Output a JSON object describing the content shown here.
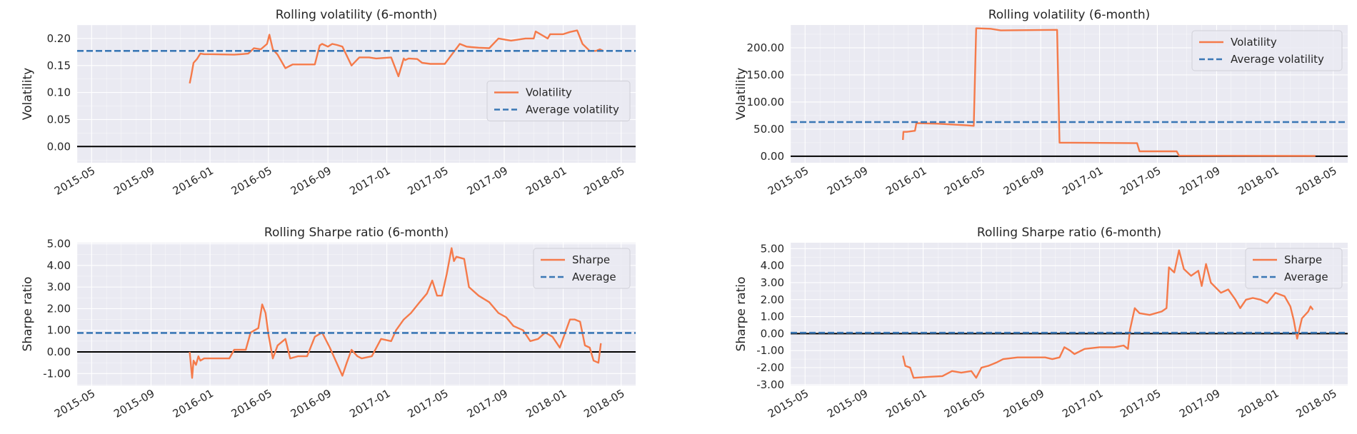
{
  "chart_data": [
    {
      "type": "line",
      "title": "Rolling volatility (6-month)",
      "xlabel": "",
      "ylabel": "Volatility",
      "x_ticks": [
        "2015-05",
        "2015-09",
        "2016-01",
        "2016-05",
        "2016-09",
        "2017-01",
        "2017-05",
        "2017-09",
        "2018-01",
        "2018-05"
      ],
      "xlim": [
        "2015-04-01",
        "2018-05-31"
      ],
      "ylim": [
        -0.03,
        0.225
      ],
      "y_ticks": [
        0.0,
        0.05,
        0.1,
        0.15,
        0.2
      ],
      "y_tick_labels": [
        "0.00",
        "0.05",
        "0.10",
        "0.15",
        "0.20"
      ],
      "grid": true,
      "legend": "center-right",
      "zero_line": 0,
      "series": [
        {
          "name": "Volatility",
          "color": "#f57a4a",
          "style": "solid",
          "x": [
            "2015-11-20",
            "2015-11-23",
            "2015-11-28",
            "2015-12-05",
            "2015-12-12",
            "2015-12-20",
            "2016-01-05",
            "2016-02-20",
            "2016-03-05",
            "2016-03-20",
            "2016-04-01",
            "2016-04-15",
            "2016-04-28",
            "2016-05-03",
            "2016-05-10",
            "2016-05-20",
            "2016-06-05",
            "2016-06-20",
            "2016-07-05",
            "2016-07-25",
            "2016-08-05",
            "2016-08-15",
            "2016-08-20",
            "2016-09-01",
            "2016-09-10",
            "2016-09-20",
            "2016-10-01",
            "2016-10-20",
            "2016-11-05",
            "2016-11-25",
            "2016-12-10",
            "2017-01-10",
            "2017-01-25",
            "2017-02-05",
            "2017-02-08",
            "2017-02-15",
            "2017-03-05",
            "2017-03-15",
            "2017-04-01",
            "2017-05-01",
            "2017-06-01",
            "2017-06-15",
            "2017-06-25",
            "2017-07-10",
            "2017-08-01",
            "2017-08-20",
            "2017-09-15",
            "2017-10-15",
            "2017-11-01",
            "2017-11-05",
            "2017-11-30",
            "2017-12-05",
            "2018-01-01",
            "2018-01-15",
            "2018-01-30",
            "2018-02-10",
            "2018-02-25",
            "2018-03-10",
            "2018-03-18",
            "2018-03-25"
          ],
          "y": [
            0.117,
            0.13,
            0.155,
            0.162,
            0.172,
            0.171,
            0.171,
            0.17,
            0.171,
            0.172,
            0.182,
            0.18,
            0.19,
            0.207,
            0.18,
            0.17,
            0.145,
            0.152,
            0.152,
            0.152,
            0.152,
            0.187,
            0.19,
            0.185,
            0.19,
            0.188,
            0.185,
            0.15,
            0.165,
            0.165,
            0.163,
            0.165,
            0.13,
            0.163,
            0.16,
            0.163,
            0.162,
            0.155,
            0.153,
            0.153,
            0.19,
            0.185,
            0.184,
            0.183,
            0.182,
            0.2,
            0.196,
            0.2,
            0.2,
            0.213,
            0.2,
            0.208,
            0.208,
            0.212,
            0.215,
            0.19,
            0.177,
            0.177,
            0.18,
            0.177
          ]
        },
        {
          "name": "Average volatility",
          "color": "#3a77b5",
          "style": "dashed",
          "x": [
            "2015-04-01",
            "2018-05-31"
          ],
          "y": [
            0.177,
            0.177
          ]
        }
      ]
    },
    {
      "type": "line",
      "title": "Rolling Sharpe ratio (6-month)",
      "xlabel": "",
      "ylabel": "Sharpe ratio",
      "x_ticks": [
        "2015-05",
        "2015-09",
        "2016-01",
        "2016-05",
        "2016-09",
        "2017-01",
        "2017-05",
        "2017-09",
        "2018-01",
        "2018-05"
      ],
      "xlim": [
        "2015-04-01",
        "2018-05-31"
      ],
      "ylim": [
        -1.55,
        5.05
      ],
      "y_ticks": [
        -1.0,
        0.0,
        1.0,
        2.0,
        3.0,
        4.0,
        5.0
      ],
      "y_tick_labels": [
        "-1.00",
        "0.00",
        "1.00",
        "2.00",
        "3.00",
        "4.00",
        "5.00"
      ],
      "grid": true,
      "legend": "top-right",
      "zero_line": 0,
      "series": [
        {
          "name": "Sharpe",
          "color": "#f57a4a",
          "style": "solid",
          "x": [
            "2015-11-20",
            "2015-11-25",
            "2015-11-28",
            "2015-12-03",
            "2015-12-08",
            "2015-12-12",
            "2015-12-20",
            "2016-02-10",
            "2016-02-20",
            "2016-03-15",
            "2016-03-25",
            "2016-04-10",
            "2016-04-18",
            "2016-04-25",
            "2016-05-01",
            "2016-05-10",
            "2016-05-20",
            "2016-06-05",
            "2016-06-15",
            "2016-07-01",
            "2016-07-20",
            "2016-08-05",
            "2016-08-20",
            "2016-09-05",
            "2016-09-15",
            "2016-10-01",
            "2016-10-10",
            "2016-10-20",
            "2016-11-01",
            "2016-11-10",
            "2016-12-01",
            "2016-12-20",
            "2017-01-10",
            "2017-01-20",
            "2017-02-05",
            "2017-02-20",
            "2017-03-10",
            "2017-03-25",
            "2017-04-05",
            "2017-04-15",
            "2017-04-25",
            "2017-05-05",
            "2017-05-15",
            "2017-05-20",
            "2017-05-25",
            "2017-06-10",
            "2017-06-20",
            "2017-07-10",
            "2017-08-01",
            "2017-08-20",
            "2017-09-05",
            "2017-09-20",
            "2017-10-10",
            "2017-10-25",
            "2017-11-10",
            "2017-11-25",
            "2017-12-10",
            "2017-12-25",
            "2018-01-15",
            "2018-01-25",
            "2018-02-05",
            "2018-02-15",
            "2018-02-25",
            "2018-03-05",
            "2018-03-15",
            "2018-03-20"
          ],
          "y": [
            0.0,
            -1.2,
            -0.4,
            -0.6,
            -0.2,
            -0.4,
            -0.3,
            -0.3,
            0.1,
            0.1,
            0.9,
            1.1,
            2.2,
            1.8,
            0.8,
            -0.3,
            0.3,
            0.6,
            -0.3,
            -0.2,
            -0.2,
            0.7,
            0.9,
            0.2,
            -0.3,
            -1.1,
            -0.5,
            0.1,
            -0.2,
            -0.3,
            -0.2,
            0.6,
            0.5,
            1.0,
            1.5,
            1.8,
            2.3,
            2.7,
            3.3,
            2.6,
            2.6,
            3.6,
            4.8,
            4.2,
            4.4,
            4.3,
            3.0,
            2.6,
            2.3,
            1.8,
            1.6,
            1.2,
            1.0,
            0.5,
            0.6,
            0.9,
            0.7,
            0.2,
            1.5,
            1.5,
            1.4,
            0.3,
            0.2,
            -0.4,
            -0.5,
            0.4
          ]
        },
        {
          "name": "Average",
          "color": "#3a77b5",
          "style": "dashed",
          "x": [
            "2015-04-01",
            "2018-05-31"
          ],
          "y": [
            0.88,
            0.88
          ]
        }
      ]
    },
    {
      "type": "line",
      "title": "Rolling volatility (6-month)",
      "xlabel": "",
      "ylabel": "Volatility",
      "x_ticks": [
        "2015-05",
        "2015-09",
        "2016-01",
        "2016-05",
        "2016-09",
        "2017-01",
        "2017-05",
        "2017-09",
        "2018-01",
        "2018-05"
      ],
      "xlim": [
        "2015-04-01",
        "2018-05-31"
      ],
      "ylim": [
        -12,
        242
      ],
      "y_ticks": [
        0,
        50,
        100,
        150,
        200
      ],
      "y_tick_labels": [
        "0.00",
        "50.00",
        "100.00",
        "150.00",
        "200.00"
      ],
      "grid": true,
      "legend": "top-right",
      "zero_line": 0,
      "series": [
        {
          "name": "Volatility",
          "color": "#f57a4a",
          "style": "solid",
          "x": [
            "2015-11-20",
            "2015-11-21",
            "2015-11-28",
            "2015-12-15",
            "2015-12-18",
            "2016-02-01",
            "2016-04-01",
            "2016-04-15",
            "2016-04-20",
            "2016-05-20",
            "2016-06-10",
            "2016-10-05",
            "2016-10-10",
            "2016-11-01",
            "2017-03-20",
            "2017-03-25",
            "2017-06-10",
            "2017-06-15",
            "2018-03-25"
          ],
          "y": [
            30,
            45,
            45,
            47,
            61,
            60,
            57,
            56,
            236,
            235,
            232,
            233,
            25,
            25,
            24,
            9,
            9,
            1,
            0.5
          ]
        },
        {
          "name": "Average volatility",
          "color": "#3a77b5",
          "style": "dashed",
          "x": [
            "2015-04-01",
            "2018-05-31"
          ],
          "y": [
            63,
            63
          ]
        }
      ]
    },
    {
      "type": "line",
      "title": "Rolling Sharpe ratio (6-month)",
      "xlabel": "",
      "ylabel": "Sharpe ratio",
      "x_ticks": [
        "2015-05",
        "2015-09",
        "2016-01",
        "2016-05",
        "2016-09",
        "2017-01",
        "2017-05",
        "2017-09",
        "2018-01",
        "2018-05"
      ],
      "xlim": [
        "2015-04-01",
        "2018-05-31"
      ],
      "ylim": [
        -3.05,
        5.35
      ],
      "y_ticks": [
        -3.0,
        -2.0,
        -1.0,
        0.0,
        1.0,
        2.0,
        3.0,
        4.0,
        5.0
      ],
      "y_tick_labels": [
        "-3.00",
        "-2.00",
        "-1.00",
        "0.00",
        "1.00",
        "2.00",
        "3.00",
        "4.00",
        "5.00"
      ],
      "grid": true,
      "legend": "top-right",
      "zero_line": 0,
      "series": [
        {
          "name": "Sharpe",
          "color": "#f57a4a",
          "style": "solid",
          "x": [
            "2015-11-20",
            "2015-11-25",
            "2015-12-05",
            "2015-12-12",
            "2016-01-10",
            "2016-02-10",
            "2016-03-01",
            "2016-03-20",
            "2016-04-10",
            "2016-04-20",
            "2016-05-01",
            "2016-05-15",
            "2016-06-01",
            "2016-06-15",
            "2016-07-15",
            "2016-08-15",
            "2016-09-10",
            "2016-09-25",
            "2016-10-10",
            "2016-10-20",
            "2016-11-01",
            "2016-11-10",
            "2016-12-01",
            "2017-01-01",
            "2017-02-01",
            "2017-02-20",
            "2017-03-01",
            "2017-03-05",
            "2017-03-15",
            "2017-03-25",
            "2017-04-15",
            "2017-05-10",
            "2017-05-20",
            "2017-05-25",
            "2017-06-05",
            "2017-06-15",
            "2017-06-25",
            "2017-07-10",
            "2017-07-25",
            "2017-08-01",
            "2017-08-10",
            "2017-08-20",
            "2017-09-10",
            "2017-09-25",
            "2017-10-10",
            "2017-10-20",
            "2017-11-01",
            "2017-11-15",
            "2017-12-01",
            "2017-12-15",
            "2018-01-01",
            "2018-01-20",
            "2018-02-01",
            "2018-02-08",
            "2018-02-15",
            "2018-02-25",
            "2018-03-10",
            "2018-03-15",
            "2018-03-20"
          ],
          "y": [
            -1.3,
            -1.9,
            -2.0,
            -2.6,
            -2.55,
            -2.5,
            -2.2,
            -2.3,
            -2.2,
            -2.6,
            -2.0,
            -1.9,
            -1.7,
            -1.5,
            -1.4,
            -1.4,
            -1.4,
            -1.5,
            -1.4,
            -0.8,
            -1.0,
            -1.2,
            -0.9,
            -0.8,
            -0.8,
            -0.7,
            -0.9,
            0.2,
            1.5,
            1.2,
            1.1,
            1.3,
            1.5,
            3.9,
            3.6,
            4.9,
            3.8,
            3.4,
            3.7,
            2.8,
            4.1,
            3.0,
            2.4,
            2.6,
            2.0,
            1.5,
            2.0,
            2.1,
            2.0,
            1.8,
            2.4,
            2.2,
            1.6,
            0.8,
            -0.3,
            0.9,
            1.3,
            1.6,
            1.4
          ]
        },
        {
          "name": "Average",
          "color": "#3a77b5",
          "style": "dashed",
          "x": [
            "2015-04-01",
            "2018-05-31"
          ],
          "y": [
            0.05,
            0.05
          ]
        }
      ]
    }
  ]
}
